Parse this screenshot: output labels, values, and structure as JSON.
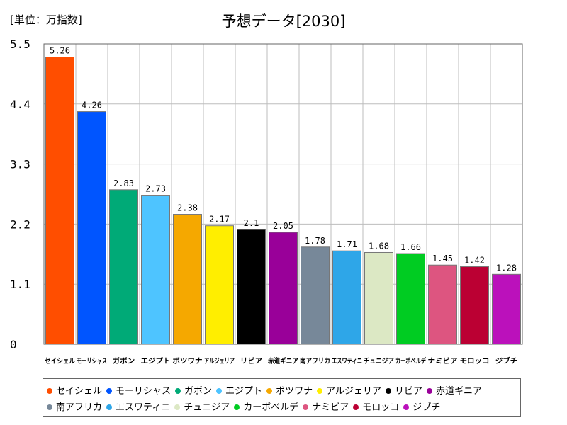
{
  "unit_label": "[単位：万指数]",
  "chart_data": {
    "type": "bar",
    "title": "予想データ[2030]",
    "categories": [
      "セイシェル",
      "モーリシャス",
      "ガボン",
      "エジプト",
      "ボツワナ",
      "アルジェリア",
      "リビア",
      "赤道ギニア",
      "南アフリカ",
      "エスワティニ",
      "チュニジア",
      "カーボベルデ",
      "ナミビア",
      "モロッコ",
      "ジブチ"
    ],
    "values": [
      5.26,
      4.26,
      2.83,
      2.73,
      2.38,
      2.17,
      2.1,
      2.05,
      1.78,
      1.71,
      1.68,
      1.66,
      1.45,
      1.42,
      1.28
    ],
    "data_labels": [
      "5.26",
      "4.26",
      "2.83",
      "2.73",
      "2.38",
      "2.17",
      "2.1",
      "2.05",
      "1.78",
      "1.71",
      "1.68",
      "1.66",
      "1.45",
      "1.42",
      "1.28"
    ],
    "colors": [
      "#ff4e00",
      "#0055ff",
      "#00aa77",
      "#4ec4ff",
      "#f5a800",
      "#ffee00",
      "#000000",
      "#990099",
      "#778899",
      "#2ea6e8",
      "#dce8c4",
      "#00cc22",
      "#dd5580",
      "#bb0033",
      "#bb11bb"
    ],
    "ylim": [
      0,
      5.5
    ],
    "yticks": [
      0,
      1.1,
      2.2,
      3.3,
      4.4,
      5.5
    ],
    "ytick_labels": [
      "0",
      "1.1",
      "2.2",
      "3.3",
      "4.4",
      "5.5"
    ],
    "grid": true,
    "legend_position": "bottom"
  }
}
